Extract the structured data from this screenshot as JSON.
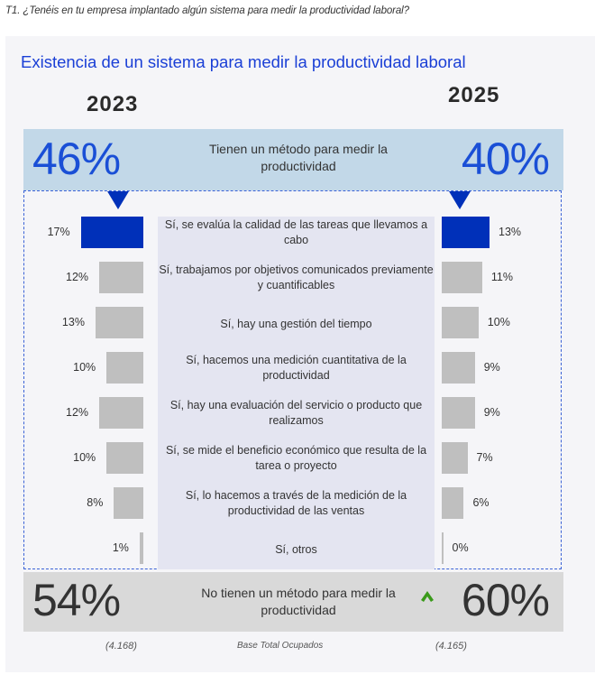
{
  "question": "T1. ¿Tenéis en tu empresa implantado algún sistema para medir la productividad laboral?",
  "chart_data": {
    "type": "bar",
    "title": "Existencia de un sistema para medir la productividad laboral",
    "orientation": "horizontal-butterfly",
    "unit": "%",
    "years": [
      "2023",
      "2025"
    ],
    "summary_yes": {
      "label": "Tienen un método para medir la productividad",
      "values": {
        "2023": 46,
        "2025": 40
      },
      "labels": {
        "2023": "46%",
        "2025": "40%"
      }
    },
    "summary_no": {
      "label": "No tienen un método para medir la productividad",
      "values": {
        "2023": 54,
        "2025": 60
      },
      "labels": {
        "2023": "54%",
        "2025": "60%"
      },
      "trend_2025": "up"
    },
    "categories": [
      "Sí, se evalúa la calidad de las tareas que llevamos a cabo",
      "Sí, trabajamos por objetivos comunicados previamente y cuantificables",
      "Sí, hay una gestión del tiempo",
      "Sí, hacemos una medición cuantitativa de la productividad",
      "Sí, hay una evaluación del servicio o producto que realizamos",
      "Sí, se mide el beneficio económico que resulta de la tarea o proyecto",
      "Sí, lo hacemos a través de la medición de la productividad de las ventas",
      "Sí, otros"
    ],
    "series": [
      {
        "name": "2023",
        "values": [
          17,
          12,
          13,
          10,
          12,
          10,
          8,
          1
        ],
        "labels": [
          "17%",
          "12%",
          "13%",
          "10%",
          "12%",
          "10%",
          "8%",
          "1%"
        ]
      },
      {
        "name": "2025",
        "values": [
          13,
          11,
          10,
          9,
          9,
          7,
          6,
          0
        ],
        "labels": [
          "13%",
          "11%",
          "10%",
          "9%",
          "9%",
          "7%",
          "6%",
          "0%"
        ]
      }
    ],
    "highlight_index": 0,
    "base": {
      "label": "Base Total Ocupados",
      "2023": "(4.168)",
      "2025": "(4.165)"
    }
  },
  "colors": {
    "title": "#1a3fd6",
    "highlight_bar": "#0030b9",
    "bar": "#bfbfbf",
    "yes_box": "#c2d8e8",
    "no_box": "#d9d9d9",
    "trend_up": "#3a9a1a"
  },
  "icons": {
    "trend": "caret-up-icon",
    "pointer": "triangle-down-icon"
  }
}
